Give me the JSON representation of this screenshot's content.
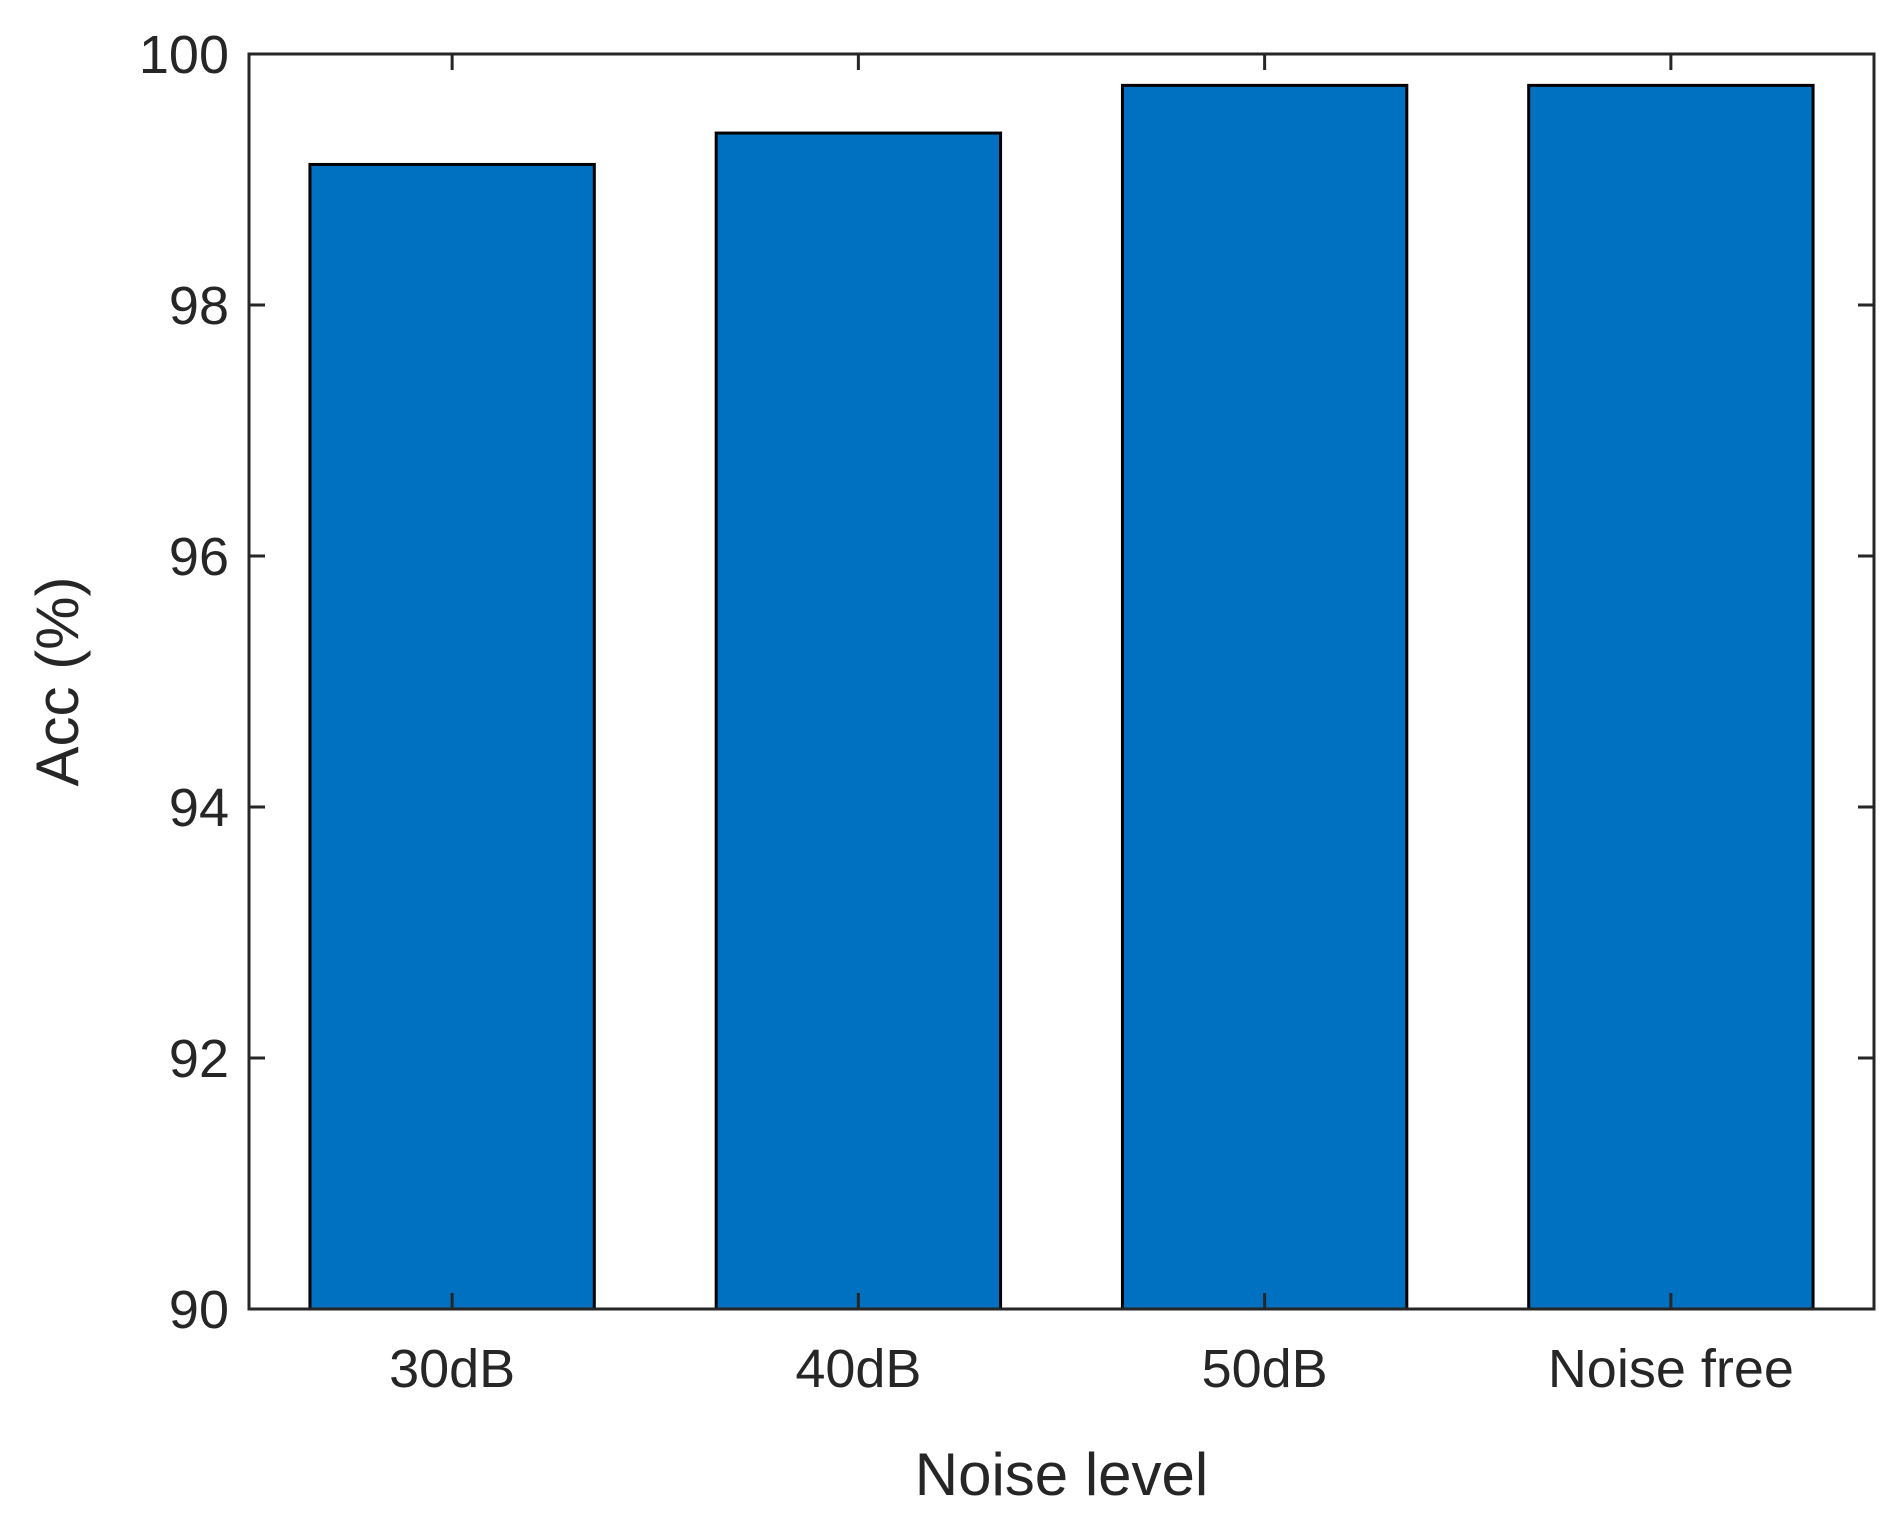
{
  "chart_data": {
    "type": "bar",
    "categories": [
      "30dB",
      "40dB",
      "50dB",
      "Noise free"
    ],
    "values": [
      99.12,
      99.37,
      99.75,
      99.75
    ],
    "xlabel": "Noise level",
    "ylabel": "Acc (%)",
    "ylim": [
      90,
      100
    ],
    "yticks": [
      90,
      92,
      94,
      96,
      98,
      100
    ],
    "bar_color": "#0070C0",
    "grid": false,
    "box": true
  }
}
